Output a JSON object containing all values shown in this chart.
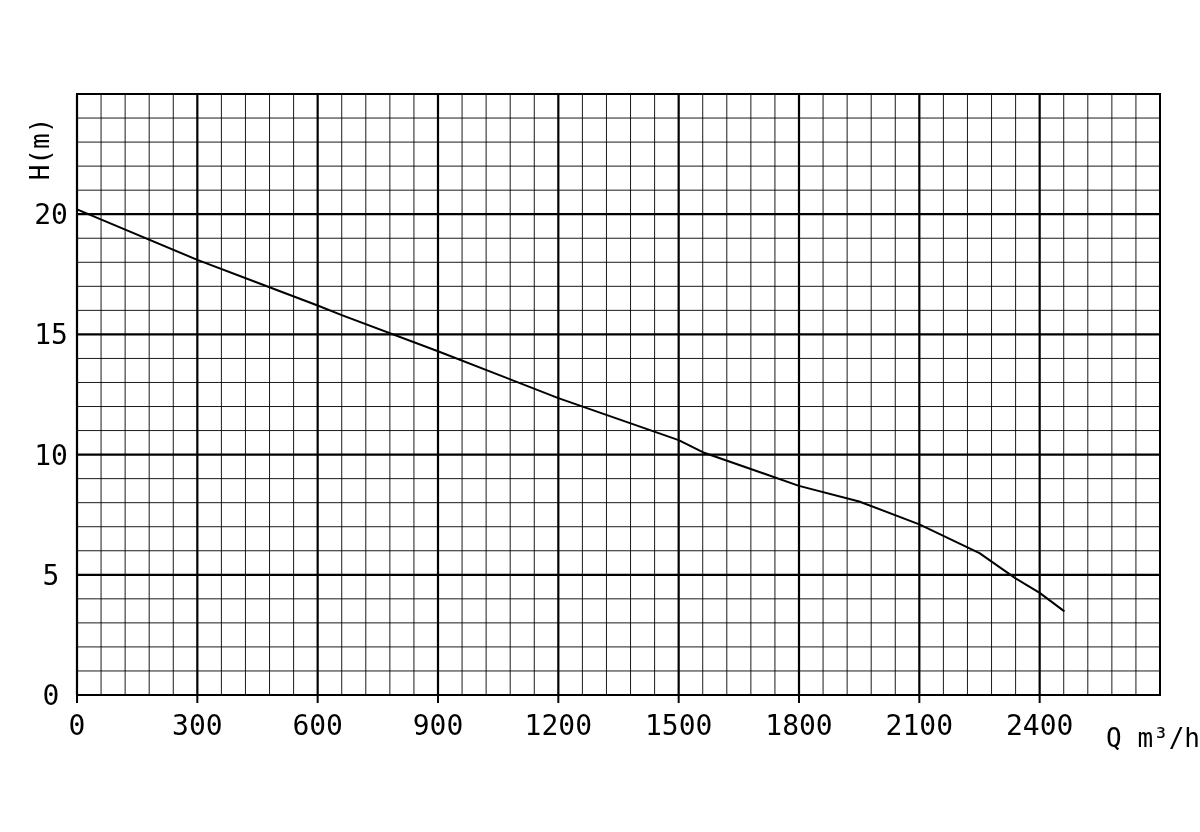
{
  "chart_data": {
    "type": "line",
    "xlabel": "Q m³/h",
    "ylabel": "H(m)",
    "xlim": [
      0,
      2700
    ],
    "ylim": [
      0,
      25
    ],
    "xticks": [
      0,
      {
        "value": 60,
        "label": null
      },
      {
        "value": 120,
        "label": null
      },
      {
        "value": 180,
        "label": null
      },
      {
        "value": 240,
        "label": null
      },
      300,
      {
        "value": 360,
        "label": null
      },
      {
        "value": 420,
        "label": null
      },
      {
        "value": 480,
        "label": null
      },
      {
        "value": 540,
        "label": null
      },
      600,
      {
        "value": 660,
        "label": null
      },
      {
        "value": 720,
        "label": null
      },
      {
        "value": 780,
        "label": null
      },
      {
        "value": 840,
        "label": null
      },
      900,
      {
        "value": 960,
        "label": null
      },
      {
        "value": 1020,
        "label": null
      },
      {
        "value": 1080,
        "label": null
      },
      {
        "value": 1140,
        "label": null
      },
      1200,
      {
        "value": 1260,
        "label": null
      },
      {
        "value": 1320,
        "label": null
      },
      {
        "value": 1380,
        "label": null
      },
      {
        "value": 1440,
        "label": null
      },
      1500,
      {
        "value": 1560,
        "label": null
      },
      {
        "value": 1620,
        "label": null
      },
      {
        "value": 1680,
        "label": null
      },
      {
        "value": 1740,
        "label": null
      },
      1800,
      {
        "value": 1860,
        "label": null
      },
      {
        "value": 1920,
        "label": null
      },
      {
        "value": 1980,
        "label": null
      },
      {
        "value": 2040,
        "label": null
      },
      2100,
      {
        "value": 2160,
        "label": null
      },
      {
        "value": 2220,
        "label": null
      },
      {
        "value": 2280,
        "label": null
      },
      {
        "value": 2340,
        "label": null
      },
      2400,
      {
        "value": 2460,
        "label": null
      },
      {
        "value": 2520,
        "label": null
      },
      {
        "value": 2580,
        "label": null
      },
      {
        "value": 2640,
        "label": null
      },
      {
        "value": 2700,
        "label": null
      }
    ],
    "yticks": [
      0,
      {
        "value": 1,
        "label": null
      },
      {
        "value": 2,
        "label": null
      },
      {
        "value": 3,
        "label": null
      },
      {
        "value": 4,
        "label": null
      },
      5,
      {
        "value": 6,
        "label": null
      },
      {
        "value": 7,
        "label": null
      },
      {
        "value": 8,
        "label": null
      },
      {
        "value": 9,
        "label": null
      },
      10,
      {
        "value": 11,
        "label": null
      },
      {
        "value": 12,
        "label": null
      },
      {
        "value": 13,
        "label": null
      },
      {
        "value": 14,
        "label": null
      },
      15,
      {
        "value": 16,
        "label": null
      },
      {
        "value": 17,
        "label": null
      },
      {
        "value": 18,
        "label": null
      },
      {
        "value": 19,
        "label": null
      },
      20,
      {
        "value": 21,
        "label": null
      },
      {
        "value": 22,
        "label": null
      },
      {
        "value": 23,
        "label": null
      },
      {
        "value": 24,
        "label": null
      },
      {
        "value": 25,
        "label": null
      }
    ],
    "grid": true,
    "marker": "none",
    "line_style": "solid",
    "series": [
      {
        "color": "#000000",
        "x": [
          0,
          300,
          600,
          660,
          900,
          1200,
          1500,
          1560,
          1800,
          1950,
          2100,
          2250,
          2340,
          2400,
          2460
        ],
        "values": [
          20.2,
          18.1,
          16.2,
          15.8,
          14.3,
          12.35,
          10.6,
          10.1,
          8.7,
          8.05,
          7.1,
          5.9,
          4.85,
          4.25,
          3.5
        ]
      }
    ]
  }
}
